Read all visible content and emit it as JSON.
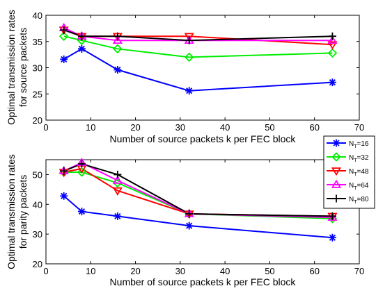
{
  "chart_data": [
    {
      "type": "line",
      "xlabel": "Number of source packets k per FEC block",
      "ylabel": [
        "Optimal transmission rates",
        "for source packets"
      ],
      "xlim": [
        0,
        70
      ],
      "ylim": [
        20,
        40
      ],
      "xticks": [
        0,
        10,
        20,
        30,
        40,
        50,
        60,
        70
      ],
      "yticks": [
        20,
        25,
        30,
        35,
        40
      ],
      "grid": false,
      "x": [
        4,
        8,
        16,
        32,
        64
      ],
      "series": [
        {
          "name": "N_T=16",
          "color": "#0000ff",
          "marker": "asterisk",
          "values": [
            31.6,
            33.6,
            29.6,
            25.6,
            27.2
          ]
        },
        {
          "name": "N_T=32",
          "color": "#00ee00",
          "marker": "diamond",
          "values": [
            36.0,
            35.2,
            33.6,
            32.0,
            32.8
          ]
        },
        {
          "name": "N_T=48",
          "color": "#ff0000",
          "marker": "triangle-down",
          "values": [
            37.2,
            36.0,
            36.0,
            36.0,
            34.4
          ]
        },
        {
          "name": "N_T=64",
          "color": "#ff00ff",
          "marker": "triangle-up",
          "values": [
            37.6,
            36.0,
            35.2,
            35.2,
            35.2
          ]
        },
        {
          "name": "N_T=80",
          "color": "#000000",
          "marker": "plus",
          "values": [
            37.2,
            36.0,
            36.0,
            35.2,
            36.0
          ]
        }
      ]
    },
    {
      "type": "line",
      "xlabel": "Number of source packets k per FEC block",
      "ylabel": [
        "Optimal transmission rates",
        "for parity packets"
      ],
      "xlim": [
        0,
        70
      ],
      "ylim": [
        20,
        55
      ],
      "xticks": [
        0,
        10,
        20,
        30,
        40,
        50,
        60,
        70
      ],
      "yticks": [
        20,
        30,
        40,
        50
      ],
      "grid": false,
      "legend": "right, between the two plots",
      "x": [
        4,
        8,
        16,
        32,
        64
      ],
      "series": [
        {
          "name": "N_T=16",
          "color": "#0000ff",
          "marker": "asterisk",
          "values": [
            42.8,
            37.6,
            36.0,
            32.8,
            28.8
          ]
        },
        {
          "name": "N_T=32",
          "color": "#00ee00",
          "marker": "diamond",
          "values": [
            50.8,
            50.8,
            47.2,
            36.8,
            35.2
          ]
        },
        {
          "name": "N_T=48",
          "color": "#ff0000",
          "marker": "triangle-down",
          "values": [
            50.8,
            52.0,
            44.6,
            36.8,
            36.0
          ]
        },
        {
          "name": "N_T=64",
          "color": "#ff00ff",
          "marker": "triangle-up",
          "values": [
            51.2,
            54.0,
            48.0,
            36.8,
            35.6
          ]
        },
        {
          "name": "N_T=80",
          "color": "#000000",
          "marker": "plus",
          "values": [
            51.2,
            53.6,
            50.0,
            36.8,
            36.0
          ]
        }
      ]
    }
  ]
}
